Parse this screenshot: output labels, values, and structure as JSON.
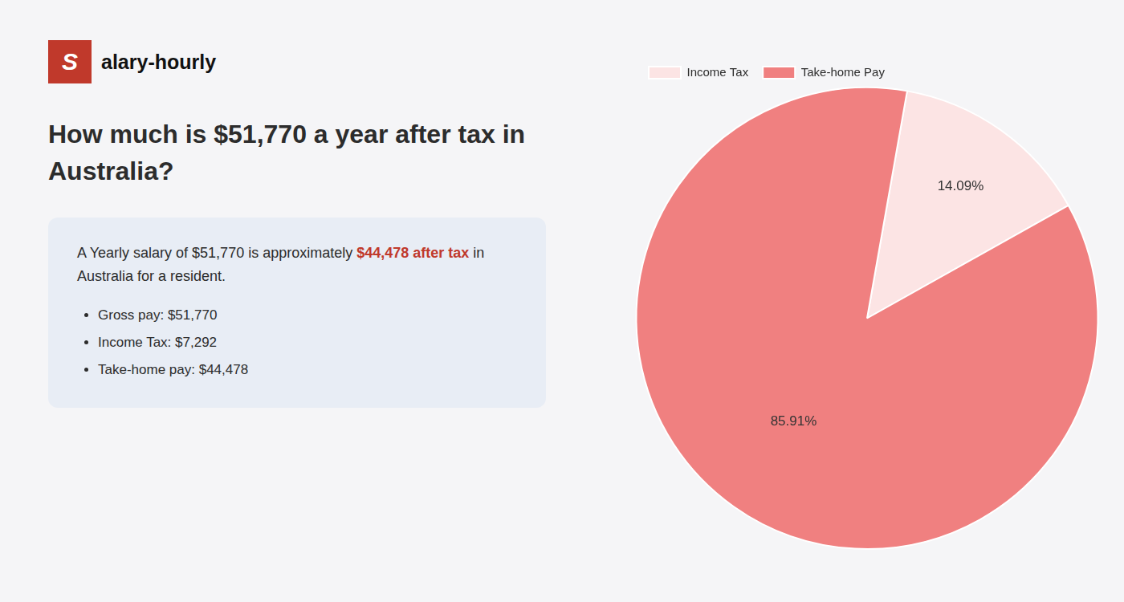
{
  "chart_data": {
    "type": "pie",
    "title": "How much is $51,770 a year after tax in Australia?",
    "annotations": [
      {
        "text": "S",
        "color": "#c0392b"
      },
      {
        "text": "alary-hourly"
      },
      {
        "text": "A Yearly salary of $51,770 is approximately "
      },
      {
        "text": "$44,478 after tax",
        "color": "#c0392b"
      },
      {
        "text": " in Australia for a resident."
      },
      {
        "text": "Gross pay: $51,770"
      },
      {
        "text": "Income Tax: $7,292"
      },
      {
        "text": "Take-home pay: $44,478"
      }
    ],
    "categories": [
      "Income Tax",
      "Take-home Pay"
    ],
    "values": [
      14.09,
      85.91
    ],
    "value_labels": [
      "14.09%",
      "85.91%"
    ],
    "colors": [
      "#fce4e4",
      "#f08080"
    ],
    "data_labels": true,
    "legend": "top"
  }
}
